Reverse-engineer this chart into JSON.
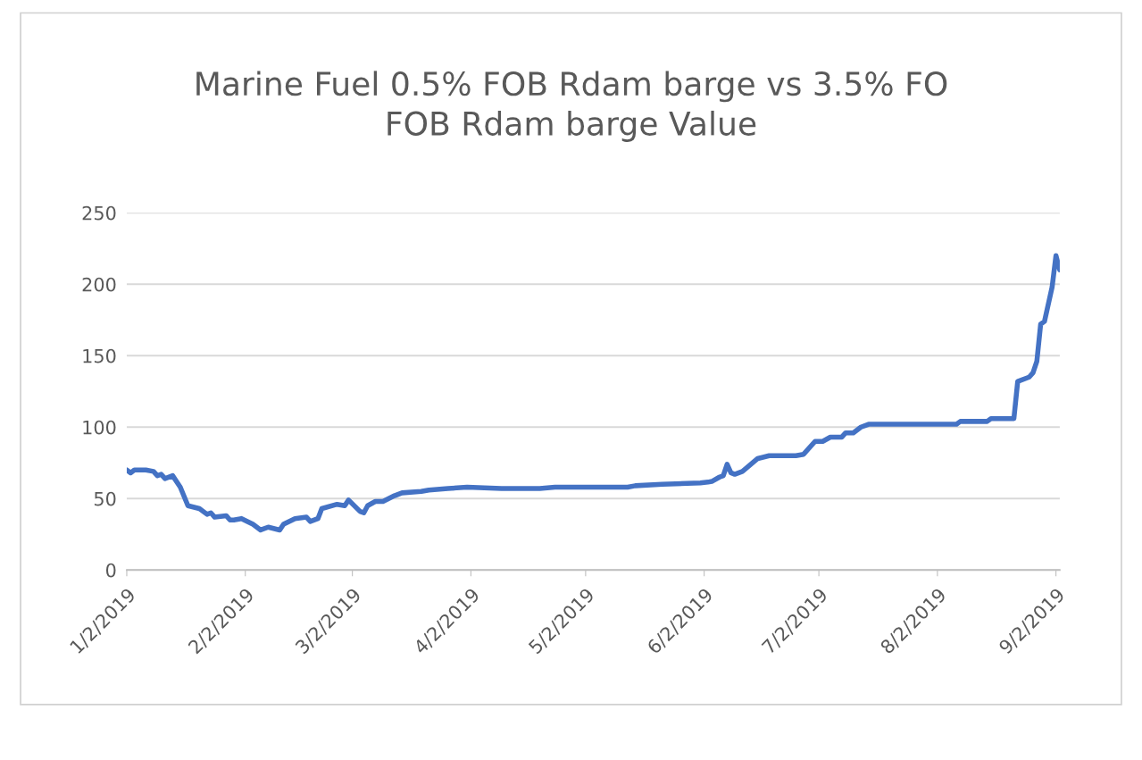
{
  "chart_data": {
    "type": "line",
    "title": "Marine Fuel 0.5% FOB Rdam barge vs 3.5% FO\nFOB Rdam barge Value",
    "x": [
      "2019-01-02",
      "2019-01-03",
      "2019-01-04",
      "2019-01-07",
      "2019-01-09",
      "2019-01-10",
      "2019-01-11",
      "2019-01-12",
      "2019-01-14",
      "2019-01-16",
      "2019-01-18",
      "2019-01-21",
      "2019-01-23",
      "2019-01-24",
      "2019-01-25",
      "2019-01-28",
      "2019-01-29",
      "2019-01-30",
      "2019-02-01",
      "2019-02-04",
      "2019-02-06",
      "2019-02-08",
      "2019-02-11",
      "2019-02-12",
      "2019-02-15",
      "2019-02-18",
      "2019-02-19",
      "2019-02-21",
      "2019-02-22",
      "2019-02-26",
      "2019-02-28",
      "2019-03-01",
      "2019-03-04",
      "2019-03-05",
      "2019-03-06",
      "2019-03-08",
      "2019-03-10",
      "2019-03-13",
      "2019-03-15",
      "2019-03-20",
      "2019-03-22",
      "2019-03-27",
      "2019-04-01",
      "2019-04-10",
      "2019-04-20",
      "2019-04-24",
      "2019-05-13",
      "2019-05-15",
      "2019-05-22",
      "2019-06-01",
      "2019-06-03",
      "2019-06-04",
      "2019-06-06",
      "2019-06-07",
      "2019-06-08",
      "2019-06-09",
      "2019-06-10",
      "2019-06-12",
      "2019-06-16",
      "2019-06-19",
      "2019-06-26",
      "2019-06-28",
      "2019-07-01",
      "2019-07-03",
      "2019-07-05",
      "2019-07-08",
      "2019-07-09",
      "2019-07-11",
      "2019-07-13",
      "2019-07-15",
      "2019-08-07",
      "2019-08-08",
      "2019-08-15",
      "2019-08-16",
      "2019-08-22",
      "2019-08-23",
      "2019-08-26",
      "2019-08-27",
      "2019-08-28",
      "2019-08-29",
      "2019-08-30",
      "2019-09-01",
      "2019-09-02",
      "2019-09-03"
    ],
    "series": [
      {
        "color": "#4472c4",
        "values": [
          70,
          68,
          70,
          70,
          69,
          66,
          67,
          64,
          66,
          58,
          45,
          43,
          39,
          40,
          37,
          38,
          35,
          35,
          36,
          32,
          28,
          30,
          28,
          32,
          36,
          37,
          34,
          36,
          43,
          46,
          45,
          49,
          41,
          40,
          45,
          48,
          48,
          52,
          54,
          55,
          56,
          57,
          58,
          57,
          57,
          58,
          58,
          59,
          60,
          61,
          61.5,
          62,
          65,
          66,
          74,
          68,
          67,
          69,
          78,
          80,
          80,
          81,
          90,
          90,
          93,
          93,
          96,
          96,
          100,
          102,
          102,
          104,
          104,
          106,
          106,
          132,
          135,
          138,
          146,
          172,
          174,
          198,
          220,
          210
        ]
      }
    ],
    "ylim": [
      0,
      250
    ],
    "yticks": [
      0,
      50,
      100,
      150,
      200,
      250
    ],
    "xlim": [
      "2019-01-02",
      "2019-09-03"
    ],
    "xticks": [
      {
        "value": "2019-01-02",
        "label": "1/2/2019"
      },
      {
        "value": "2019-02-02",
        "label": "2/2/2019"
      },
      {
        "value": "2019-03-02",
        "label": "3/2/2019"
      },
      {
        "value": "2019-04-02",
        "label": "4/2/2019"
      },
      {
        "value": "2019-05-02",
        "label": "5/2/2019"
      },
      {
        "value": "2019-06-02",
        "label": "6/2/2019"
      },
      {
        "value": "2019-07-02",
        "label": "7/2/2019"
      },
      {
        "value": "2019-08-02",
        "label": "8/2/2019"
      },
      {
        "value": "2019-09-02",
        "label": "9/2/2019"
      }
    ],
    "grid": "y",
    "line_style": "solid"
  }
}
